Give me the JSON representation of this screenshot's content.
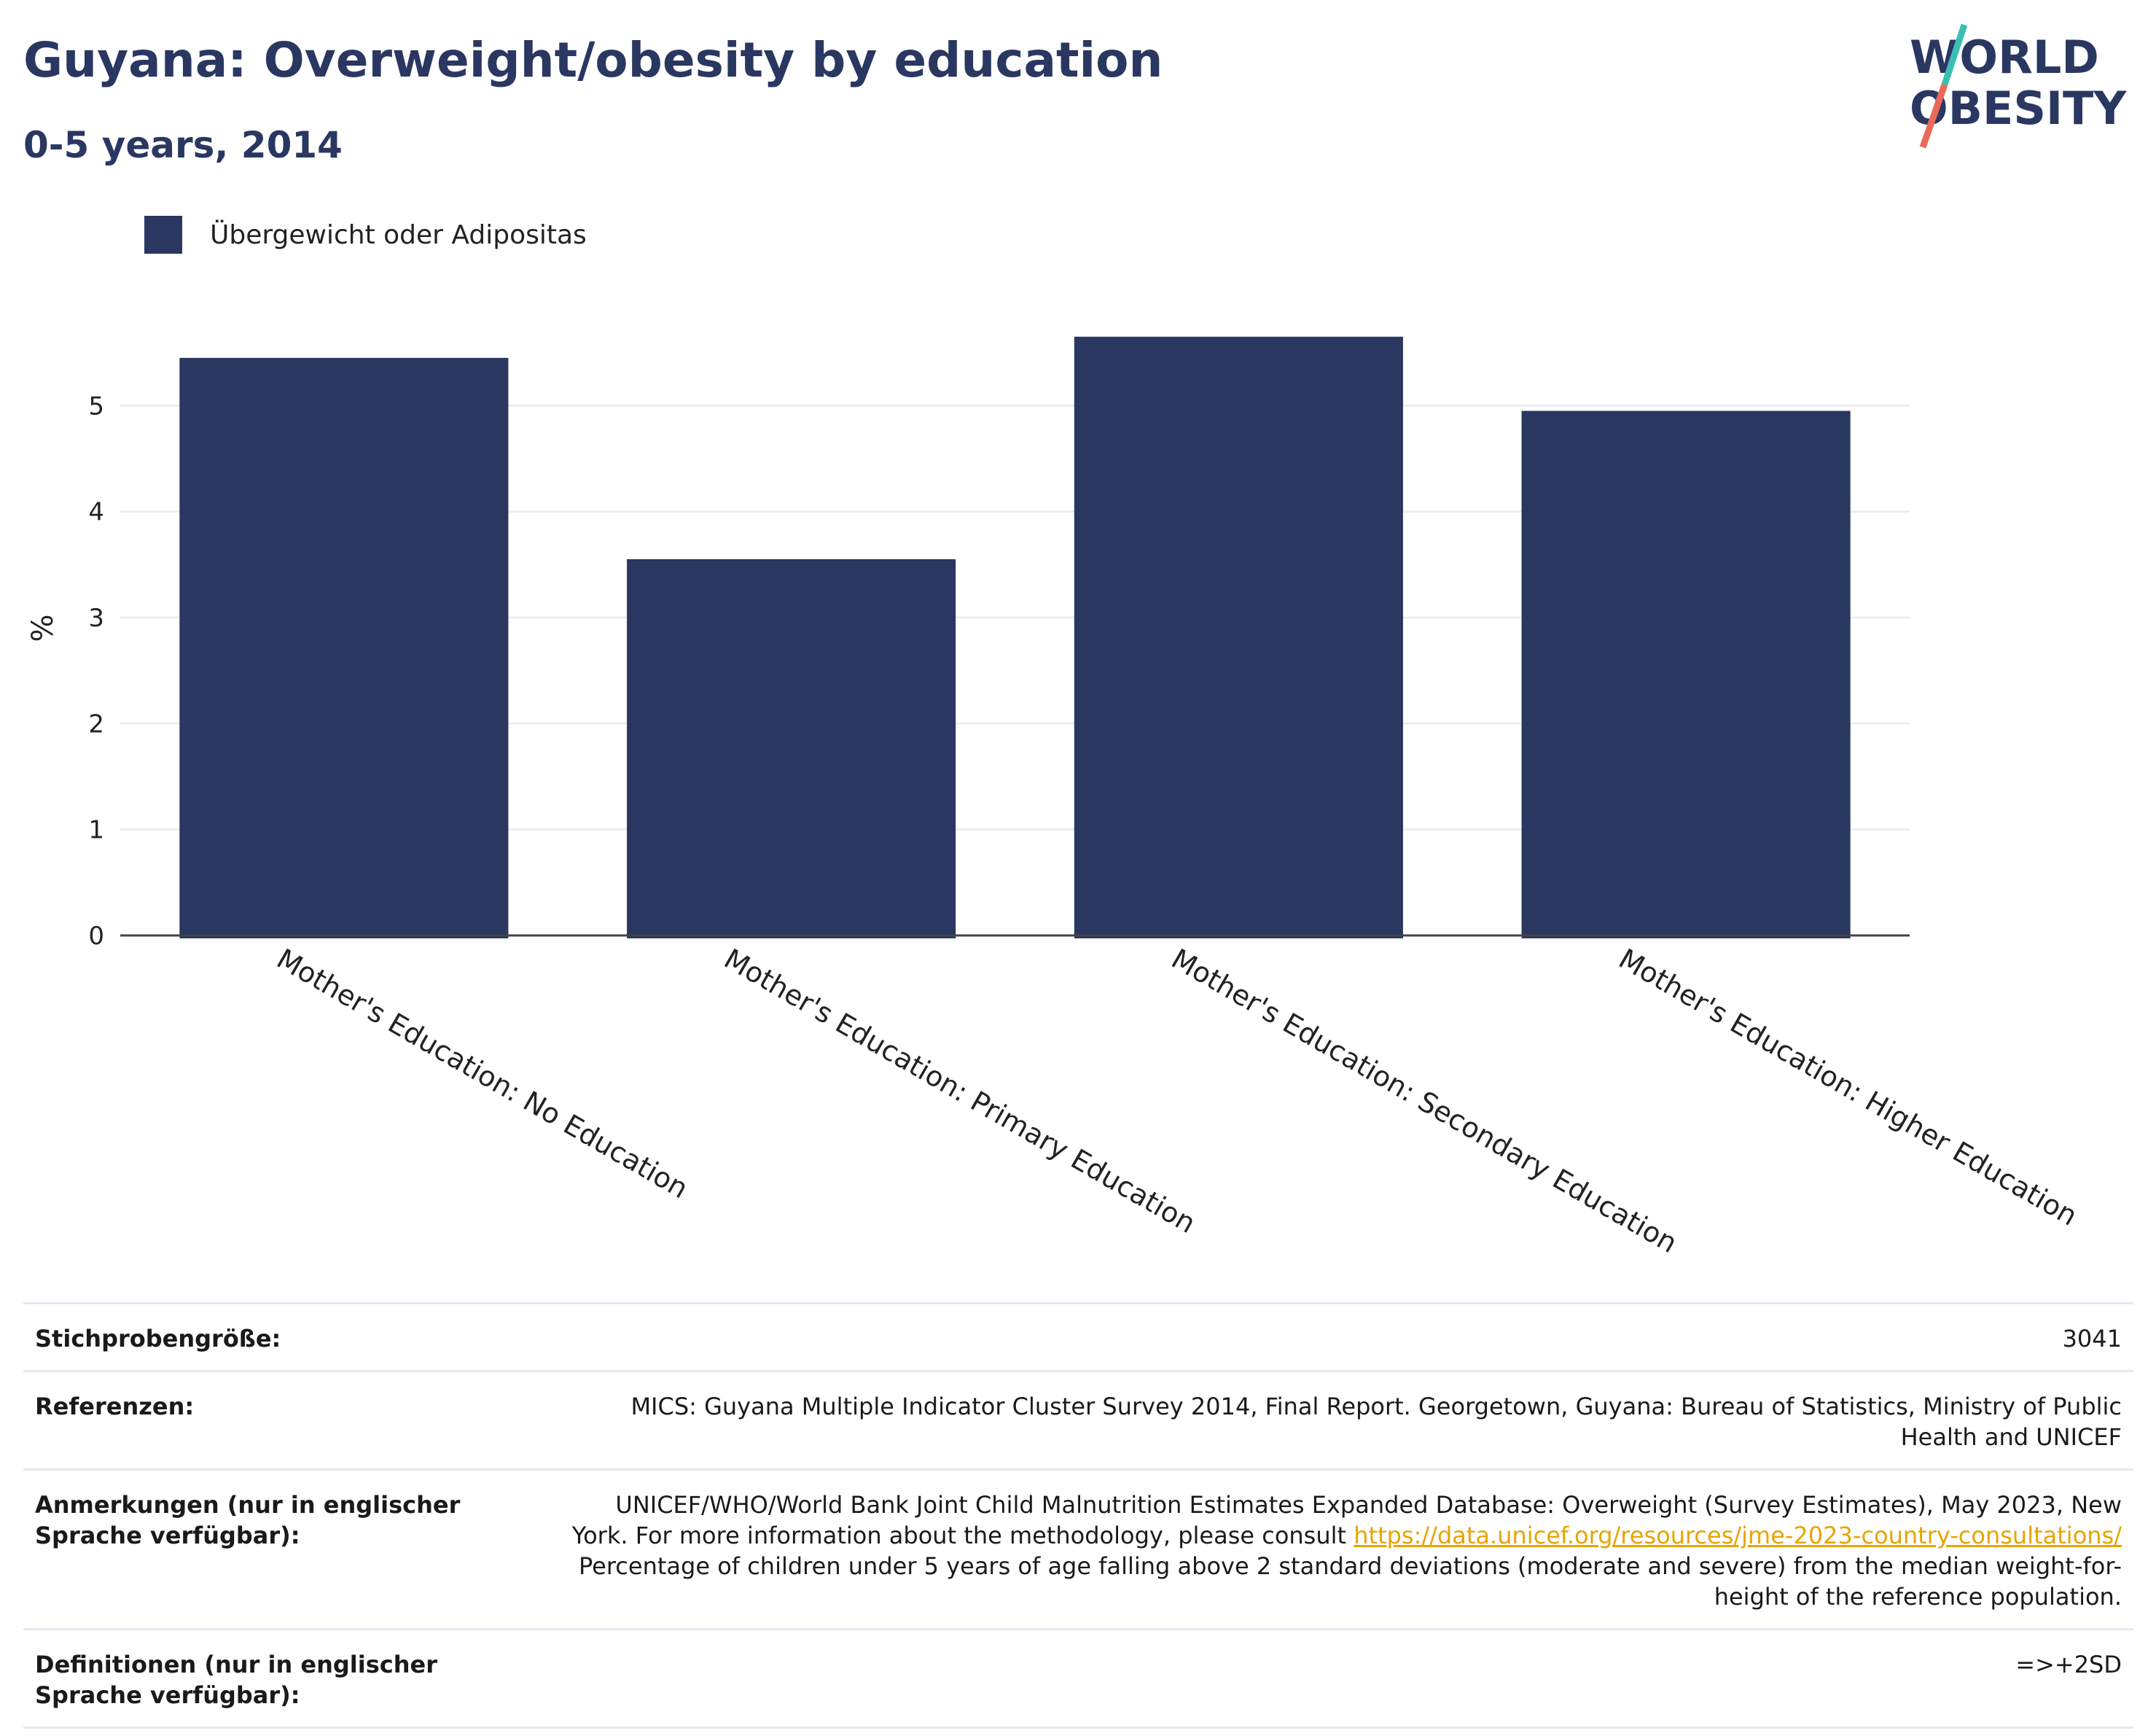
{
  "header": {
    "title": "Guyana: Overweight/obesity by education",
    "subtitle": "0-5 years, 2014"
  },
  "logo": {
    "line1": "WORLD",
    "line2": "OBESITY"
  },
  "colors": {
    "bar": "#2a3761",
    "accent_teal": "#3bbfb4",
    "accent_coral": "#e86a5a",
    "link": "#e8a400"
  },
  "chart_data": {
    "type": "bar",
    "categories": [
      "Mother's Education: No Education",
      "Mother's Education: Primary Education",
      "Mother's Education: Secondary Education",
      "Mother's Education: Higher Education"
    ],
    "series": [
      {
        "name": "Übergewicht oder Adipositas",
        "values": [
          5.45,
          3.55,
          5.65,
          4.95
        ]
      }
    ],
    "ylabel": "%",
    "yticks": [
      0,
      1,
      2,
      3,
      4,
      5
    ],
    "ylim": [
      0,
      5.8
    ],
    "grid": true,
    "legend": "top-left"
  },
  "footer": {
    "sample_label": "Stichprobengröße:",
    "sample_value": "3041",
    "refs_label": "Referenzen:",
    "refs_value": "MICS: Guyana Multiple Indicator Cluster Survey 2014, Final Report. Georgetown, Guyana: Bureau of Statistics, Ministry of Public Health and UNICEF",
    "notes_label": "Anmerkungen (nur in englischer Sprache verfügbar):",
    "notes_value_before": "UNICEF/WHO/World Bank Joint Child Malnutrition Estimates Expanded Database: Overweight (Survey Estimates), May 2023, New York. For more information about the methodology, please consult ",
    "notes_link": "https://data.unicef.org/resources/jme-2023-country-consultations/",
    "notes_value_after": " Percentage of children under 5 years of age falling above 2 standard deviations (moderate and severe) from the median weight-for-height of the reference population.",
    "defs_label": "Definitionen (nur in englischer Sprache verfügbar):",
    "defs_value": "=>+2SD"
  }
}
